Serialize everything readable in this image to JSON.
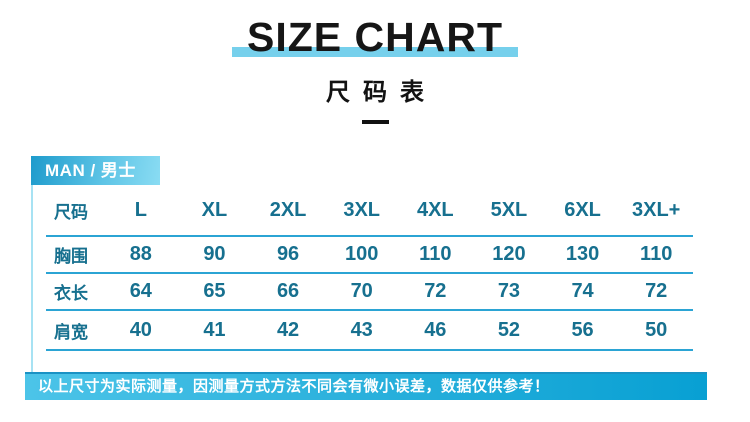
{
  "title": {
    "main": "SIZE CHART",
    "sub": "尺码表",
    "highlight_color": "#76d0ec"
  },
  "section_header": "MAN / 男士",
  "chart_data": {
    "type": "table",
    "title": "SIZE CHART 尺码表",
    "row_headers": [
      "尺码",
      "胸围",
      "衣长",
      "肩宽"
    ],
    "columns": [
      "L",
      "XL",
      "2XL",
      "3XL",
      "4XL",
      "5XL",
      "6XL",
      "3XL+"
    ],
    "rows": [
      {
        "label": "尺码",
        "values": [
          "L",
          "XL",
          "2XL",
          "3XL",
          "4XL",
          "5XL",
          "6XL",
          "3XL+"
        ]
      },
      {
        "label": "胸围",
        "values": [
          88,
          90,
          96,
          100,
          110,
          120,
          130,
          110
        ]
      },
      {
        "label": "衣长",
        "values": [
          64,
          65,
          66,
          70,
          72,
          73,
          74,
          72
        ]
      },
      {
        "label": "肩宽",
        "values": [
          40,
          41,
          42,
          43,
          46,
          52,
          56,
          50
        ]
      }
    ]
  },
  "footer": {
    "note": "以上尺寸为实际测量，因测量方式方法不同会有微小误差，数据仅供参考！"
  },
  "colors": {
    "title_text": "#161616",
    "highlight": "#76d0ec",
    "header_gradient_start": "#1e9bcc",
    "header_gradient_end": "#8adcf3",
    "table_text": "#17708f",
    "divider_line": "#2ba4d4",
    "left_border": "#a7e2f3",
    "footer_gradient_start": "#4cc4e8",
    "footer_gradient_end": "#08a0d3",
    "footer_top_border": "#1a92c4"
  }
}
